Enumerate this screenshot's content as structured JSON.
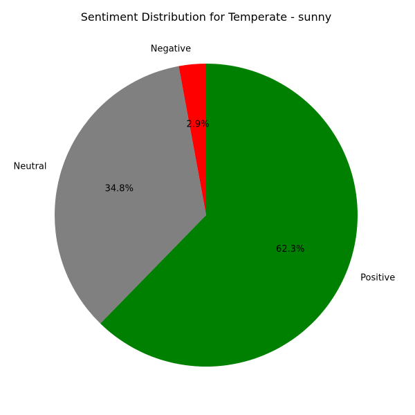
{
  "chart_data": {
    "type": "pie",
    "title": "Sentiment Distribution for Temperate - sunny",
    "start_angle_deg": 90,
    "direction": "counterclockwise",
    "slices": [
      {
        "label": "Negative",
        "value": 2.9,
        "pct_label": "2.9%",
        "color": "#ff0000"
      },
      {
        "label": "Neutral",
        "value": 34.8,
        "pct_label": "34.8%",
        "color": "#808080"
      },
      {
        "label": "Positive",
        "value": 62.3,
        "pct_label": "62.3%",
        "color": "#008000"
      }
    ]
  }
}
